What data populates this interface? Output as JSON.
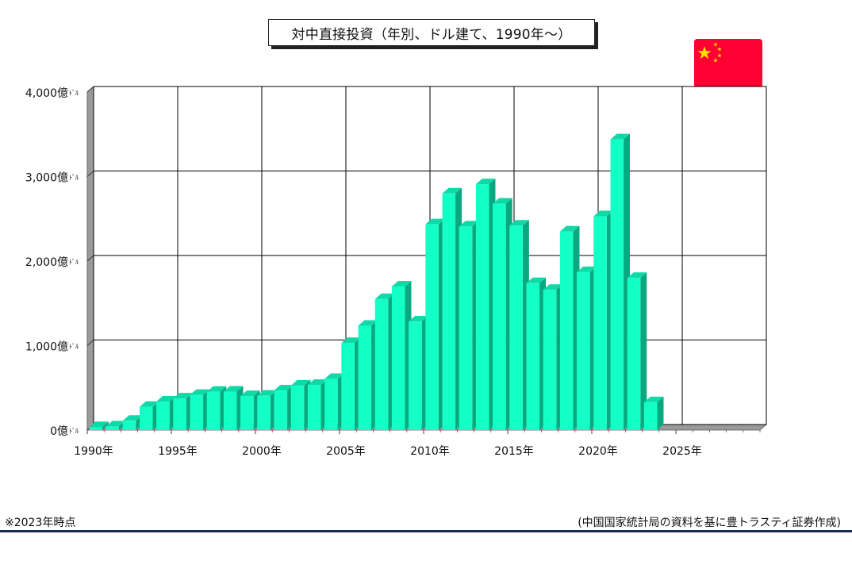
{
  "header": {
    "title": "対中直接投資（年別、ドル建て、1990年～）"
  },
  "footer": {
    "note": "※2023年時点",
    "source": "(中国国家統計局の資料を基に豊トラスティ証券作成)"
  },
  "flag": {
    "icon": "china-flag-icon",
    "color_red": "#ff0033",
    "color_star": "#ffde00"
  },
  "colors": {
    "bar_front": "#14ffc6",
    "bar_side": "#0aa880",
    "bar_top": "#0fd9a6",
    "grid": "#000000",
    "wall": "#9a9a9a"
  },
  "chart_data": {
    "type": "bar",
    "title": "対中直接投資（年別、ドル建て、1990年～）",
    "unit": "億ﾄﾞﾙ",
    "xlim": [
      1990,
      2030
    ],
    "ylim": [
      0,
      4000
    ],
    "grid": true,
    "x_ticks": [
      {
        "year": 1990,
        "label": "1990年"
      },
      {
        "year": 1995,
        "label": "1995年"
      },
      {
        "year": 2000,
        "label": "2000年"
      },
      {
        "year": 2005,
        "label": "2005年"
      },
      {
        "year": 2010,
        "label": "2010年"
      },
      {
        "year": 2015,
        "label": "2015年"
      },
      {
        "year": 2020,
        "label": "2020年"
      },
      {
        "year": 2025,
        "label": "2025年"
      }
    ],
    "y_ticks": [
      {
        "value": 0,
        "label": "0億"
      },
      {
        "value": 1000,
        "label": "1,000億"
      },
      {
        "value": 2000,
        "label": "2,000億"
      },
      {
        "value": 3000,
        "label": "3,000億"
      },
      {
        "value": 4000,
        "label": "4,000億"
      }
    ],
    "categories": [
      1990,
      1991,
      1992,
      1993,
      1994,
      1995,
      1996,
      1997,
      1998,
      1999,
      2000,
      2001,
      2002,
      2003,
      2004,
      2005,
      2006,
      2007,
      2008,
      2009,
      2010,
      2011,
      2012,
      2013,
      2014,
      2015,
      2016,
      2017,
      2018,
      2019,
      2020,
      2021,
      2022,
      2023
    ],
    "values": [
      35,
      44,
      110,
      275,
      338,
      375,
      417,
      453,
      455,
      403,
      407,
      469,
      527,
      535,
      606,
      1030,
      1235,
      1550,
      1700,
      1285,
      2435,
      2800,
      2410,
      2910,
      2680,
      2420,
      1740,
      1660,
      2350,
      1870,
      2530,
      3440,
      1800,
      330
    ]
  }
}
